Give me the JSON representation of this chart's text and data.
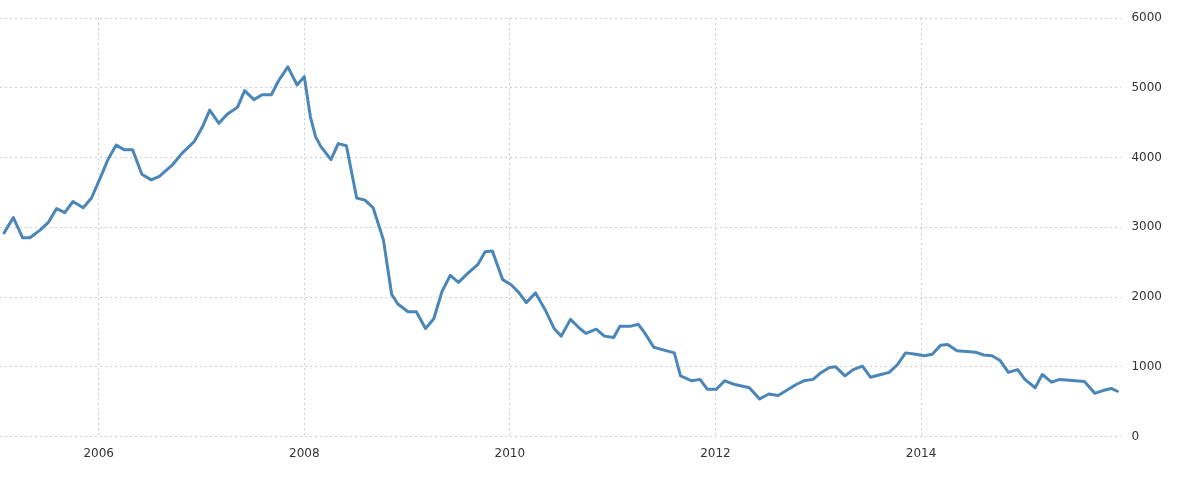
{
  "chart_data": {
    "type": "line",
    "x": [
      2005.08,
      2005.17,
      2005.26,
      2005.33,
      2005.43,
      2005.51,
      2005.59,
      2005.67,
      2005.75,
      2005.85,
      2005.93,
      2006.01,
      2006.09,
      2006.17,
      2006.25,
      2006.33,
      2006.42,
      2006.51,
      2006.59,
      2006.72,
      2006.81,
      2006.93,
      2007.01,
      2007.08,
      2007.17,
      2007.25,
      2007.35,
      2007.42,
      2007.51,
      2007.59,
      2007.68,
      2007.75,
      2007.84,
      2007.93,
      2008.0,
      2008.06,
      2008.11,
      2008.16,
      2008.26,
      2008.33,
      2008.41,
      2008.51,
      2008.59,
      2008.67,
      2008.77,
      2008.85,
      2008.91,
      2009.01,
      2009.09,
      2009.18,
      2009.26,
      2009.34,
      2009.42,
      2009.5,
      2009.59,
      2009.69,
      2009.76,
      2009.83,
      2009.93,
      2010.01,
      2010.09,
      2010.16,
      2010.25,
      2010.35,
      2010.43,
      2010.5,
      2010.59,
      2010.68,
      2010.74,
      2010.84,
      2010.92,
      2011.01,
      2011.07,
      2011.17,
      2011.25,
      2011.31,
      2011.4,
      2011.5,
      2011.6,
      2011.66,
      2011.77,
      2011.85,
      2011.92,
      2012.01,
      2012.09,
      2012.18,
      2012.33,
      2012.43,
      2012.52,
      2012.61,
      2012.69,
      2012.79,
      2012.86,
      2012.95,
      2013.03,
      2013.11,
      2013.17,
      2013.26,
      2013.34,
      2013.43,
      2013.51,
      2013.61,
      2013.69,
      2013.77,
      2013.85,
      2013.95,
      2014.03,
      2014.11,
      2014.19,
      2014.26,
      2014.35,
      2014.53,
      2014.61,
      2014.69,
      2014.77,
      2014.85,
      2014.94,
      2015.01,
      2015.11,
      2015.18,
      2015.27,
      2015.35,
      2015.5,
      2015.59,
      2015.69,
      2015.77,
      2015.85,
      2015.91
    ],
    "values": [
      2920,
      3140,
      2850,
      2850,
      2960,
      3070,
      3270,
      3210,
      3370,
      3280,
      3420,
      3690,
      3970,
      4180,
      4110,
      4110,
      3760,
      3680,
      3730,
      3900,
      4060,
      4230,
      4440,
      4680,
      4490,
      4620,
      4720,
      4960,
      4830,
      4900,
      4900,
      5100,
      5300,
      5040,
      5160,
      4580,
      4300,
      4160,
      3970,
      4200,
      4170,
      3420,
      3390,
      3280,
      2820,
      2040,
      1900,
      1790,
      1790,
      1550,
      1690,
      2080,
      2310,
      2210,
      2340,
      2470,
      2650,
      2660,
      2250,
      2180,
      2060,
      1920,
      2060,
      1800,
      1550,
      1440,
      1680,
      1550,
      1480,
      1540,
      1440,
      1420,
      1580,
      1580,
      1610,
      1490,
      1280,
      1240,
      1200,
      870,
      800,
      820,
      680,
      680,
      800,
      750,
      700,
      540,
      610,
      590,
      660,
      750,
      800,
      820,
      920,
      990,
      1000,
      870,
      960,
      1010,
      850,
      890,
      920,
      1030,
      1200,
      1180,
      1160,
      1180,
      1310,
      1320,
      1230,
      1210,
      1170,
      1160,
      1090,
      920,
      960,
      820,
      700,
      890,
      780,
      820,
      800,
      790,
      620,
      660,
      690,
      650
    ],
    "color": "#4a86b8",
    "xlim": [
      2005.04,
      2015.95
    ],
    "xticks": [
      2006,
      2008,
      2010,
      2012,
      2014
    ],
    "ylim": [
      0,
      6000
    ],
    "yticks": [
      0,
      1000,
      2000,
      3000,
      4000,
      5000,
      6000
    ],
    "grid": true,
    "marker": "none",
    "line_style": "solid"
  }
}
